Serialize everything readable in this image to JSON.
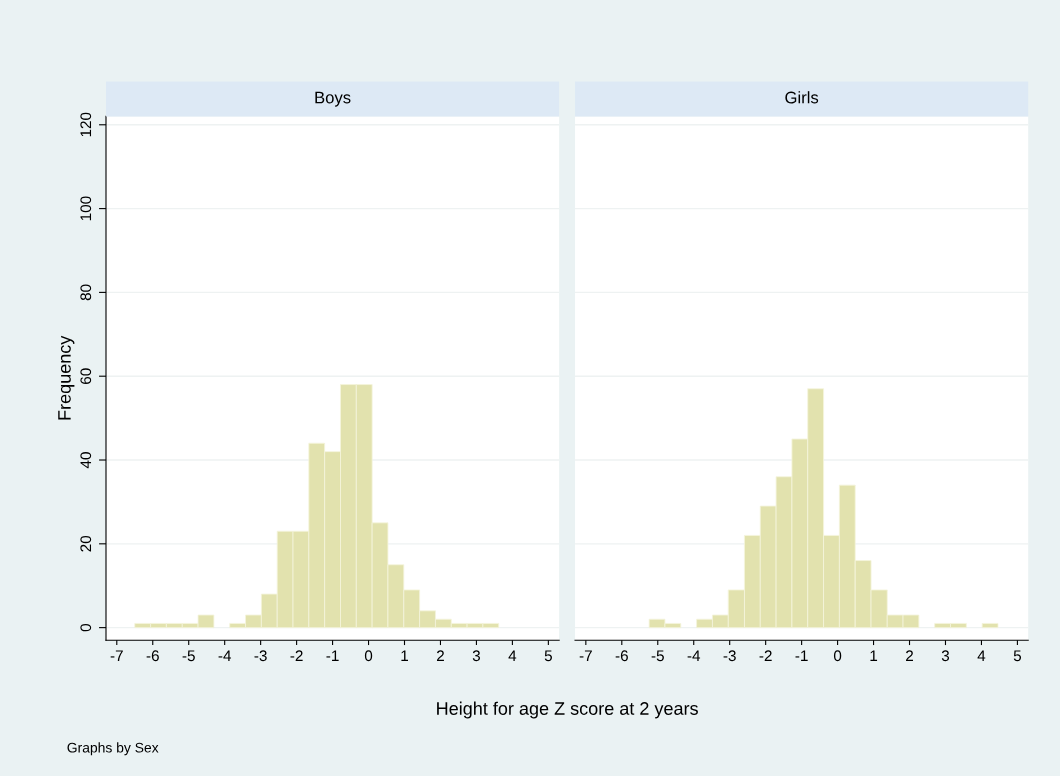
{
  "chart_data": [
    {
      "type": "histogram",
      "title": "Boys",
      "ylabel": "Frequency",
      "xlabel": "Height for age Z score at 2 years",
      "annotations": [
        "Graphs by Sex"
      ],
      "color": "#e2e2ae",
      "grid": "y",
      "bins": [
        -6.5,
        -6.06,
        -5.62,
        -5.18,
        -4.74,
        -4.3,
        -3.86,
        -3.42,
        -2.98,
        -2.54,
        -2.1,
        -1.66,
        -1.22,
        -0.78,
        -0.34,
        0.1,
        0.54,
        0.98,
        1.42,
        1.86,
        2.3,
        2.74,
        3.18,
        3.62
      ],
      "values": [
        1,
        1,
        1,
        1,
        3,
        0,
        1,
        3,
        8,
        23,
        23,
        44,
        42,
        58,
        58,
        25,
        15,
        9,
        4,
        2,
        1,
        1,
        1
      ],
      "xlim": [
        -7.3,
        5.3
      ],
      "xticks": [
        -7,
        -6,
        -5,
        -4,
        -3,
        -2,
        -1,
        0,
        1,
        2,
        3,
        4,
        5
      ],
      "ylim": [
        -3,
        122
      ],
      "yticks": [
        0,
        20,
        40,
        60,
        80,
        100,
        120
      ]
    },
    {
      "type": "histogram",
      "title": "Girls",
      "color": "#e2e2ae",
      "grid": "y",
      "tick_labels": "x",
      "bins": [
        -5.24,
        -4.8,
        -4.36,
        -3.92,
        -3.48,
        -3.04,
        -2.59,
        -2.15,
        -1.71,
        -1.27,
        -0.83,
        -0.39,
        0.05,
        0.49,
        0.93,
        1.38,
        1.82,
        2.26,
        2.7,
        3.14,
        3.58,
        4.02,
        4.46
      ],
      "values": [
        2,
        1,
        0,
        2,
        3,
        9,
        22,
        29,
        36,
        45,
        57,
        22,
        34,
        16,
        9,
        3,
        3,
        0,
        1,
        1,
        0,
        1
      ],
      "xlim": [
        -7.3,
        5.3
      ],
      "xticks": [
        -7,
        -6,
        -5,
        -4,
        -3,
        -2,
        -1,
        0,
        1,
        2,
        3,
        4,
        5
      ],
      "ylim": [
        -3,
        122
      ],
      "yticks": [
        0,
        20,
        40,
        60,
        80,
        100,
        120
      ]
    }
  ]
}
